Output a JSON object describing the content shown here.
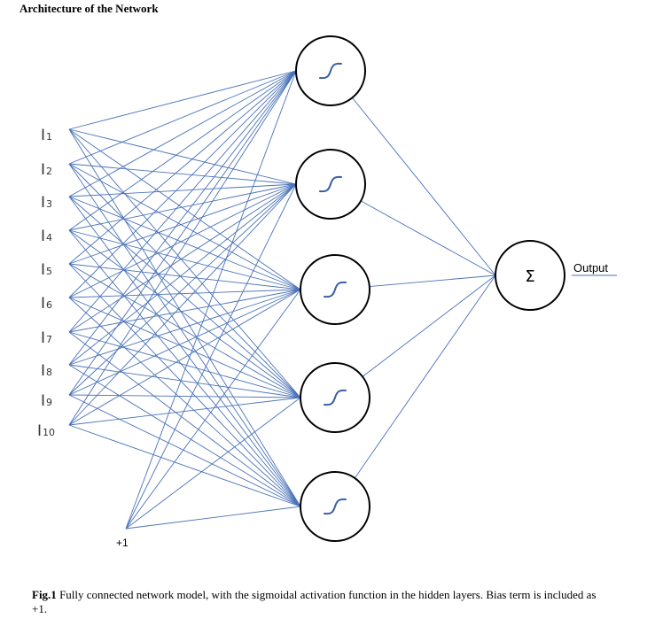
{
  "title": "Architecture of the Network",
  "inputs": [
    {
      "letter": "I",
      "sub": "1"
    },
    {
      "letter": "I",
      "sub": "2"
    },
    {
      "letter": "I",
      "sub": "3"
    },
    {
      "letter": "I",
      "sub": "4"
    },
    {
      "letter": "I",
      "sub": "5"
    },
    {
      "letter": "I",
      "sub": "6"
    },
    {
      "letter": "I",
      "sub": "7"
    },
    {
      "letter": "I",
      "sub": "8"
    },
    {
      "letter": "I",
      "sub": "9"
    },
    {
      "letter": "I",
      "sub": "10"
    }
  ],
  "bias": "+1",
  "hidden_count": 5,
  "sum_symbol": "Σ",
  "output_label": "Output",
  "colors": {
    "connection": "#4a72b8",
    "sigmoid_curve": "#3b5fa0",
    "node_stroke": "#000000"
  },
  "caption": {
    "bold": "Fig.1",
    "text": " Fully connected network model, with the sigmoidal activation function in the hidden layers. Bias term is included as +1."
  }
}
